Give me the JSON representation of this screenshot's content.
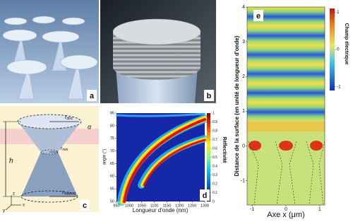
{
  "panel_labels": [
    "a",
    "b",
    "c",
    "d",
    "e"
  ],
  "schematic": {
    "height": "h",
    "angle": "α",
    "radii": [
      {
        "symbol": "r",
        "sub": "disc"
      },
      {
        "symbol": "r",
        "sub": "min"
      },
      {
        "symbol": "r",
        "sub": "support"
      }
    ],
    "axes": [
      "x",
      "y",
      "z"
    ]
  },
  "reflectivity_plot": {
    "x_label": "Longueur d'onde (nm)",
    "y_label": "angle (°)",
    "xlim": [
      950,
      1300
    ],
    "xticks": [
      950,
      1000,
      1050,
      1100,
      1150,
      1200,
      1250,
      1300
    ],
    "ylim": [
      50,
      85
    ],
    "yticks": [
      50,
      55,
      60,
      65,
      70,
      75,
      80,
      85
    ],
    "colorbar": {
      "label": "Réflectivité",
      "lim": [
        0,
        1
      ],
      "ticks": [
        0,
        0.1,
        0.2,
        0.3,
        0.4,
        0.5,
        0.6,
        0.7,
        0.8,
        0.9,
        1
      ]
    }
  },
  "field_plot": {
    "x_label": "Axe x (μm)",
    "y_label": "Distance de la surface (en unité de longueur d'onde)",
    "xlim": [
      -1.15,
      1.15
    ],
    "xticks": [
      -1,
      0,
      1
    ],
    "ylim": [
      -1.7,
      4
    ],
    "yticks": [
      -1,
      0,
      1,
      2,
      3,
      4
    ],
    "colorbar": {
      "label": "Champ électrique",
      "lim": [
        -1.1,
        1.1
      ],
      "ticks": [
        -1,
        0,
        1
      ]
    }
  }
}
